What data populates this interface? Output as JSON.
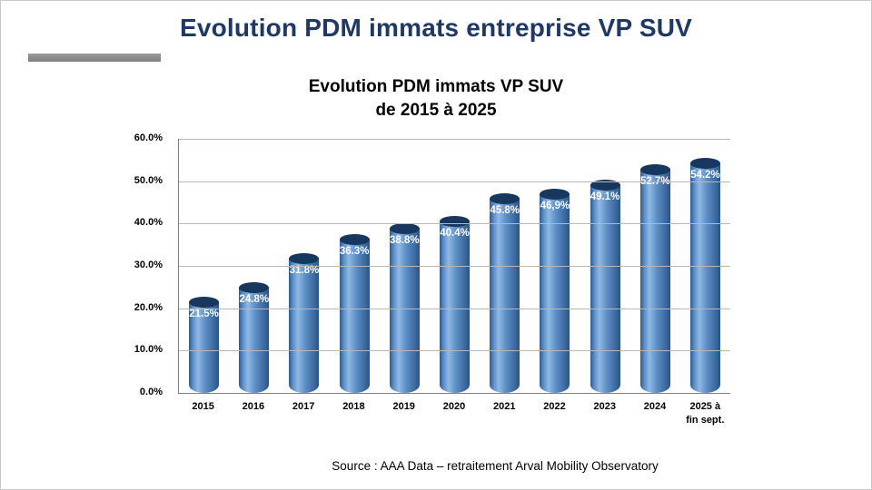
{
  "slide": {
    "title": "Evolution PDM immats entreprise VP SUV",
    "source": "Source : AAA Data – retraitement Arval Mobility Observatory"
  },
  "chart_data": {
    "type": "bar",
    "subtype": "3d-cylinder",
    "title": "Evolution PDM immats VP SUV de 2015 à 2025",
    "title_line1": "Evolution PDM immats VP SUV",
    "title_line2": "de 2015 à 2025",
    "categories": [
      "2015",
      "2016",
      "2017",
      "2018",
      "2019",
      "2020",
      "2021",
      "2022",
      "2023",
      "2024",
      "2025 à fin sept."
    ],
    "values": [
      21.5,
      24.8,
      31.8,
      36.3,
      38.8,
      40.4,
      45.8,
      46.9,
      49.1,
      52.7,
      54.2
    ],
    "data_labels": [
      "21.5%",
      "24.8%",
      "31.8%",
      "36.3%",
      "38.8%",
      "40.4%",
      "45.8%",
      "46,9%",
      "49.1%",
      "52.7%",
      "54.2%"
    ],
    "ylim": [
      0,
      60
    ],
    "ytick_step": 10,
    "yticks": [
      "0.0%",
      "10.0%",
      "20.0%",
      "30.0%",
      "40.0%",
      "50.0%",
      "60.0%"
    ],
    "grid": true,
    "legend": "none",
    "colors": {
      "title": "#1F3864",
      "bar_body": "#4F81BD",
      "bar_top": "#17375E",
      "gridline": "#b8b8b8",
      "accent_bar": "#808080"
    }
  }
}
